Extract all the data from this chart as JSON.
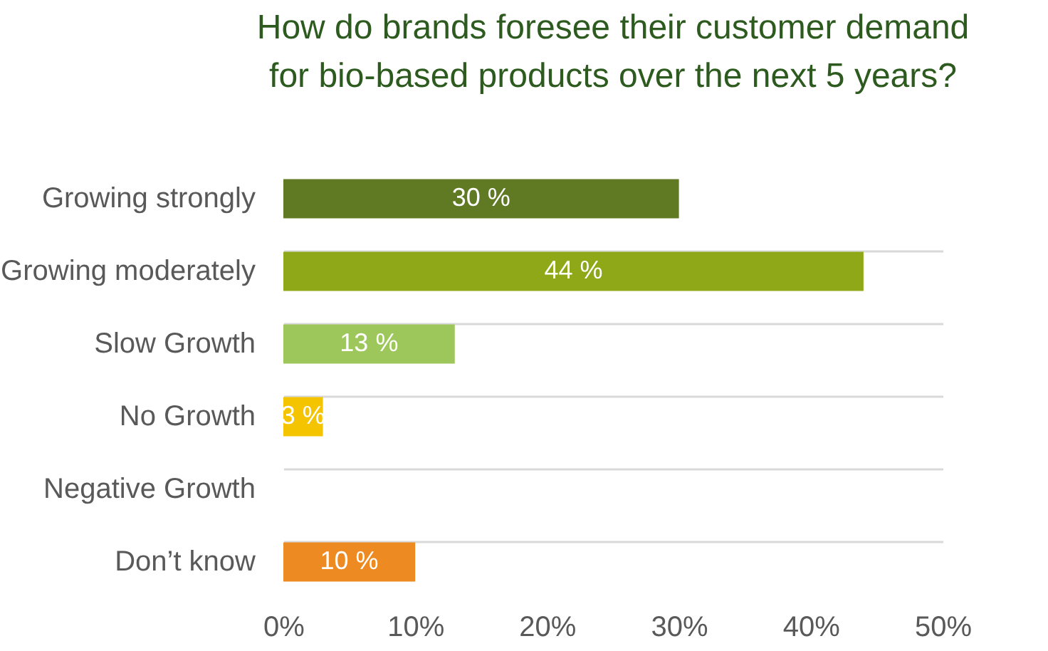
{
  "chart_data": {
    "type": "bar",
    "orientation": "horizontal",
    "title": [
      "How do brands foresee their customer demand",
      "for bio-based products over the next 5 years?"
    ],
    "categories": [
      "Growing strongly",
      "Growing moderately",
      "Slow Growth",
      "No Growth",
      "Negative Growth",
      "Don’t know"
    ],
    "values": [
      30,
      44,
      13,
      3,
      0,
      10
    ],
    "colors": [
      "#5f7a23",
      "#8ea817",
      "#9dc75a",
      "#f5c400",
      "#ffffff",
      "#ee8a22"
    ],
    "value_labels": [
      "30 %",
      "44 %",
      "13 %",
      "3 %",
      null,
      "10 %"
    ],
    "xlim": [
      0,
      50
    ],
    "xticks": [
      {
        "value": 0,
        "label": "0%"
      },
      {
        "value": 10,
        "label": "10%"
      },
      {
        "value": 20,
        "label": "20%"
      },
      {
        "value": 30,
        "label": "30%"
      },
      {
        "value": 40,
        "label": "40%"
      },
      {
        "value": 50,
        "label": "50%"
      }
    ],
    "grid": "y"
  }
}
